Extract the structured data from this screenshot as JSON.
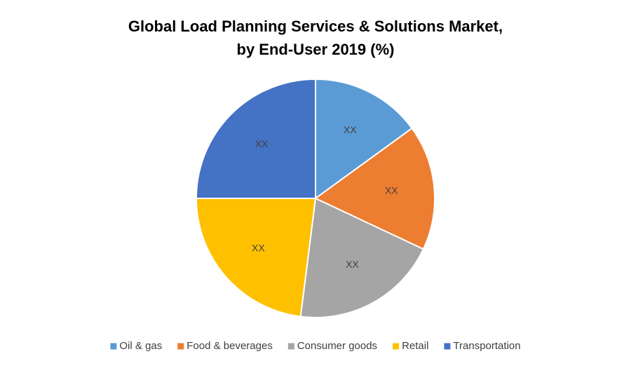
{
  "chart_data": {
    "type": "pie",
    "title": [
      "Global Load Planning Services & Solutions Market,",
      "by End-User 2019 (%)"
    ],
    "categories": [
      "Oil & gas",
      "Food & beverages",
      "Consumer goods",
      "Retail",
      "Transportation"
    ],
    "values": [
      15,
      17,
      20,
      23,
      25
    ],
    "value_labels": [
      "XX",
      "XX",
      "XX",
      "XX",
      "XX"
    ],
    "colors": [
      "#5b9bd5",
      "#ed7d31",
      "#a5a5a5",
      "#ffc000",
      "#4472c4"
    ],
    "legend": "bottom"
  }
}
